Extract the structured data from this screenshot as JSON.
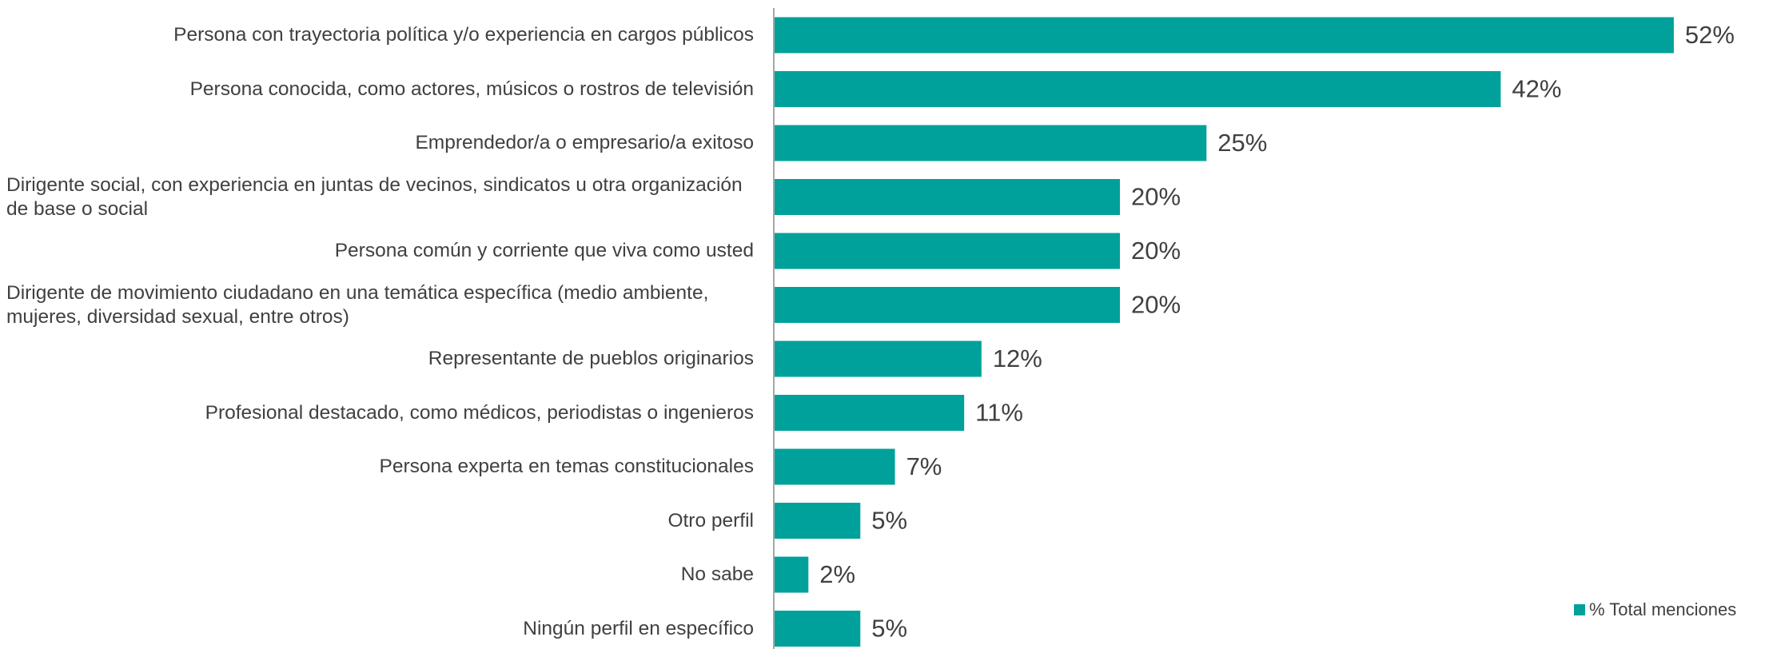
{
  "chart_data": {
    "type": "barh",
    "categories": [
      "Persona con trayectoria política y/o experiencia en cargos públicos",
      "Persona conocida, como actores, músicos o rostros de televisión",
      "Emprendedor/a o empresario/a exitoso",
      "Dirigente social, con experiencia en juntas de vecinos, sindicatos u otra organización de base o social",
      "Persona común y corriente que viva como usted",
      "Dirigente de movimiento ciudadano en una temática específica (medio ambiente, mujeres, diversidad sexual, entre otros)",
      "Representante de pueblos originarios",
      "Profesional destacado, como médicos, periodistas o ingenieros",
      "Persona experta en temas constitucionales",
      "Otro perfil",
      "No sabe",
      "Ningún perfil en específico"
    ],
    "series": [
      {
        "name": "% Total menciones",
        "color": "#00a19a",
        "values": [
          52,
          42,
          25,
          20,
          20,
          20,
          12,
          11,
          7,
          5,
          2,
          5
        ],
        "value_labels": [
          "52%",
          "42%",
          "25%",
          "20%",
          "20%",
          "20%",
          "12%",
          "11%",
          "7%",
          "5%",
          "2%",
          "5%"
        ]
      }
    ],
    "xlim": [
      0,
      57.5
    ],
    "legend": "lower right"
  }
}
